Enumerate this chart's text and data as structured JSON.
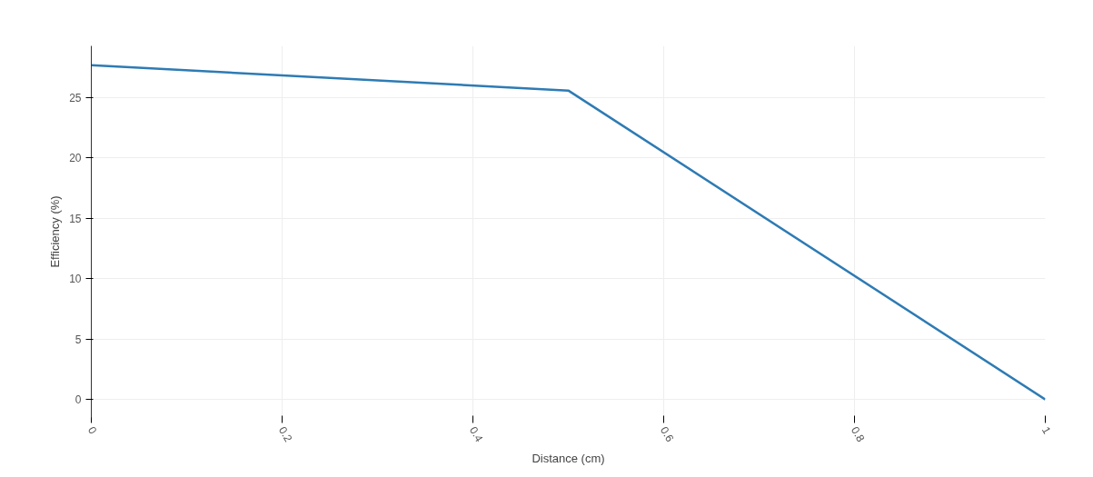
{
  "chart_data": {
    "type": "line",
    "xlabel": "Distance (cm)",
    "ylabel": "Efficiency (%)",
    "x": [
      0,
      0.5,
      1
    ],
    "series": [
      {
        "color": "#2e7bb4",
        "values": [
          27.7,
          25.6,
          0
        ]
      }
    ],
    "xlim": [
      0,
      1
    ],
    "xticks": [
      0,
      0.2,
      0.4,
      0.6,
      0.8,
      1
    ],
    "ylim": [
      -1.5,
      29.3
    ],
    "yticks": [
      0,
      5,
      10,
      15,
      20,
      25
    ],
    "grid": true,
    "marker": "none",
    "line_style": "solid"
  }
}
